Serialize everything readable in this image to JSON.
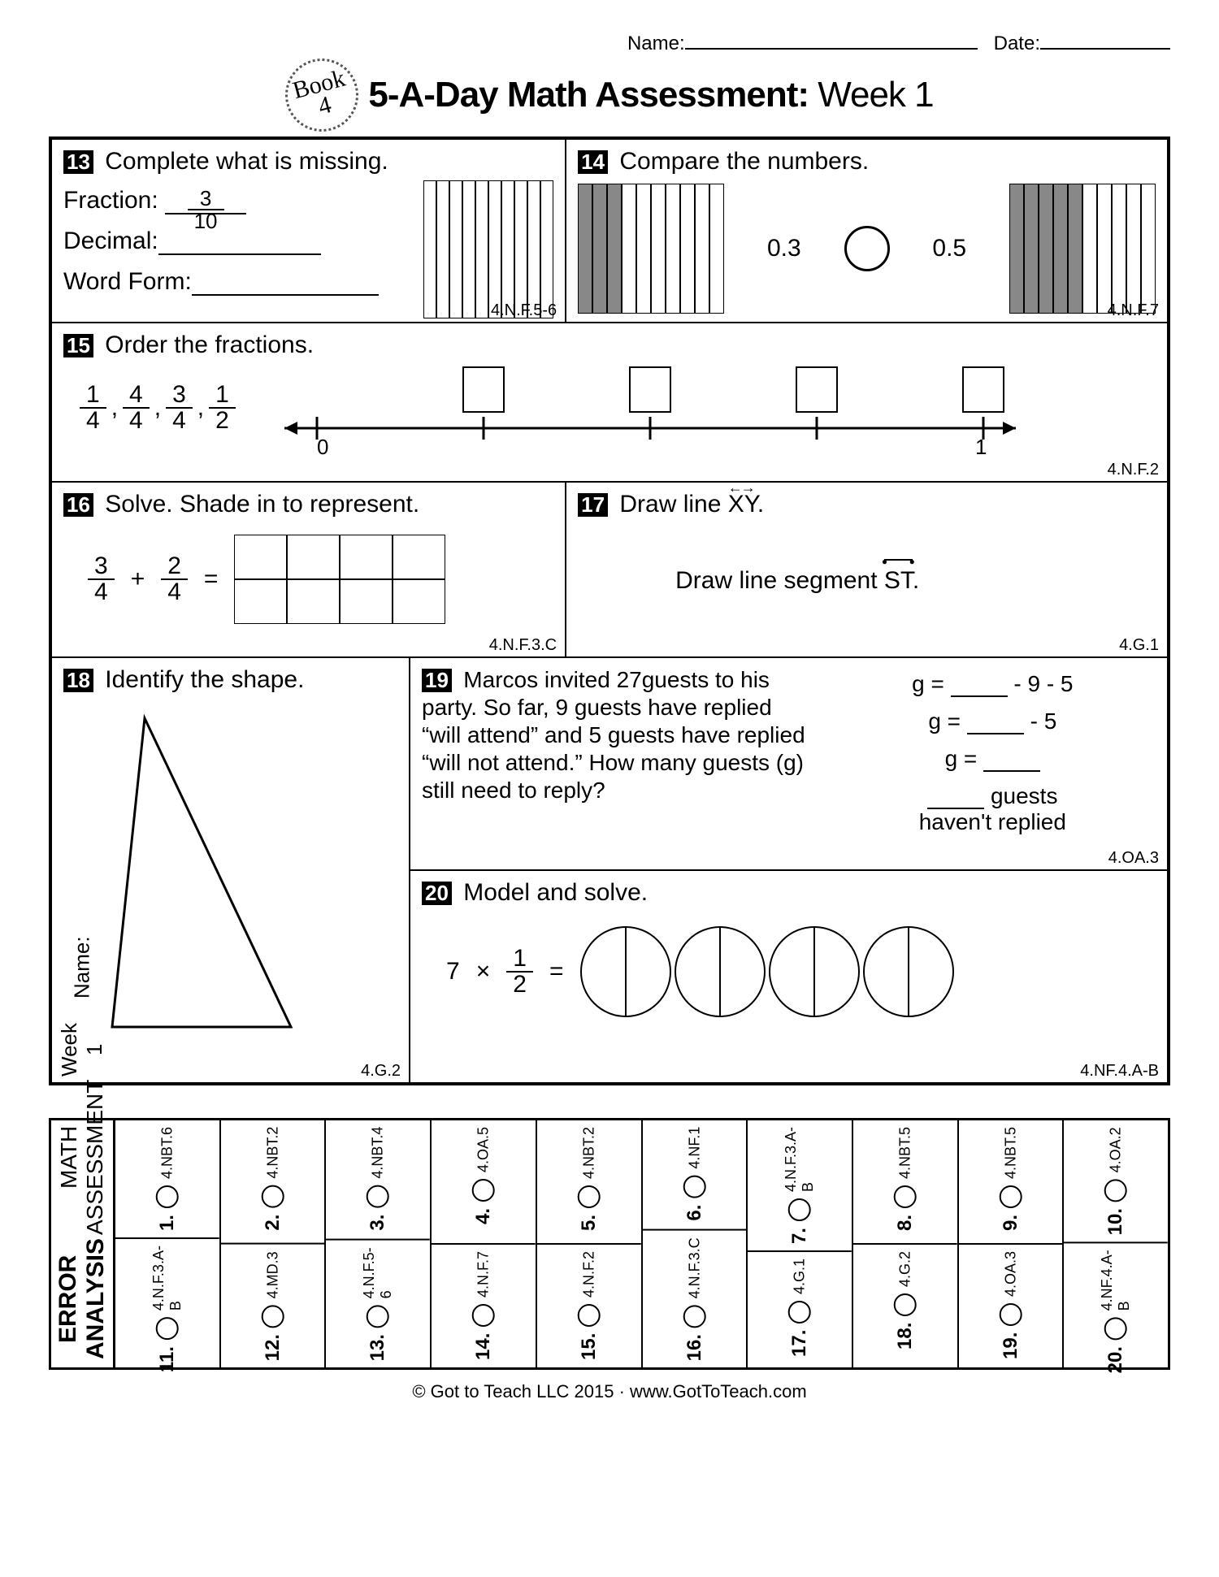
{
  "header": {
    "name_label": "Name:",
    "date_label": "Date:"
  },
  "seal": {
    "line1": "Book",
    "line2": "4"
  },
  "title": {
    "bold": "5-A-Day Math Assessment:",
    "thin": " Week 1"
  },
  "q13": {
    "num": "13",
    "prompt": "Complete what is missing.",
    "frac_label": "Fraction:",
    "frac_top": "3",
    "frac_bot": "10",
    "dec_label": "Decimal:",
    "word_label": "Word Form:",
    "std": "4.N.F.5-6",
    "bars": 10
  },
  "q14": {
    "num": "14",
    "prompt": "Compare the numbers.",
    "left_val": "0.3",
    "right_val": "0.5",
    "left_shaded": 3,
    "right_shaded": 5,
    "bars": 10,
    "std": "4.N.F.7"
  },
  "q15": {
    "num": "15",
    "prompt": "Order the fractions.",
    "fracs": [
      [
        "1",
        "4"
      ],
      [
        "4",
        "4"
      ],
      [
        "3",
        "4"
      ],
      [
        "1",
        "2"
      ]
    ],
    "line_start": "0",
    "line_end": "1",
    "std": "4.N.F.2"
  },
  "q16": {
    "num": "16",
    "prompt": "Solve. Shade in to represent.",
    "a_top": "3",
    "a_bot": "4",
    "op": "+",
    "b_top": "2",
    "b_bot": "4",
    "eq": "=",
    "rows": 2,
    "cols": 4,
    "std": "4.N.F.3.C"
  },
  "q17": {
    "num": "17",
    "line1_a": "Draw line ",
    "line1_b": "XY",
    "line1_c": ".",
    "line2_a": "Draw line segment ",
    "line2_b": "ST",
    "line2_c": ".",
    "std": "4.G.1"
  },
  "q18": {
    "num": "18",
    "prompt": "Identify the shape.",
    "std": "4.G.2"
  },
  "q19": {
    "num": "19",
    "text": "Marcos invited 27guests to his party.  So far, 9 guests have replied “will attend” and 5 guests have replied “will not attend.” How many guests (g) still need to reply?",
    "w1a": "g = ",
    "w1b": " - 9 - 5",
    "w2a": "g = ",
    "w2b": " - 5",
    "w3a": "g = ",
    "w4": " guests",
    "w5": "haven't replied",
    "std": "4.OA.3"
  },
  "q20": {
    "num": "20",
    "prompt": "Model and solve.",
    "a": "7",
    "op": "×",
    "b_top": "1",
    "b_bot": "2",
    "eq": "=",
    "circles": 4,
    "std": "4.NF.4.A-B"
  },
  "ea": {
    "title_bold": "ERROR ANALYSIS",
    "title_thin": "MATH ASSESSMENT",
    "week": "Week 1",
    "name": "Name:",
    "left": [
      {
        "n": "1.",
        "s": "4.NBT.6"
      },
      {
        "n": "2.",
        "s": "4.NBT.2"
      },
      {
        "n": "3.",
        "s": "4.NBT.4"
      },
      {
        "n": "4.",
        "s": "4.OA.5"
      },
      {
        "n": "5.",
        "s": "4.NBT.2"
      },
      {
        "n": "6.",
        "s": "4.NF.1"
      },
      {
        "n": "7.",
        "s": "4.N.F.3.A-B"
      },
      {
        "n": "8.",
        "s": "4.NBT.5"
      },
      {
        "n": "9.",
        "s": "4.NBT.5"
      },
      {
        "n": "10.",
        "s": "4.OA.2"
      }
    ],
    "right": [
      {
        "n": "11.",
        "s": "4.N.F.3.A-B"
      },
      {
        "n": "12.",
        "s": "4.MD.3"
      },
      {
        "n": "13.",
        "s": "4.N.F.5-6"
      },
      {
        "n": "14.",
        "s": "4.N.F.7"
      },
      {
        "n": "15.",
        "s": "4.N.F.2"
      },
      {
        "n": "16.",
        "s": "4.N.F.3.C"
      },
      {
        "n": "17.",
        "s": "4.G.1"
      },
      {
        "n": "18.",
        "s": "4.G.2"
      },
      {
        "n": "19.",
        "s": "4.OA.3"
      },
      {
        "n": "20.",
        "s": "4.NF.4.A-B"
      }
    ]
  },
  "footer": "© Got to Teach LLC 2015 · www.GotToTeach.com"
}
